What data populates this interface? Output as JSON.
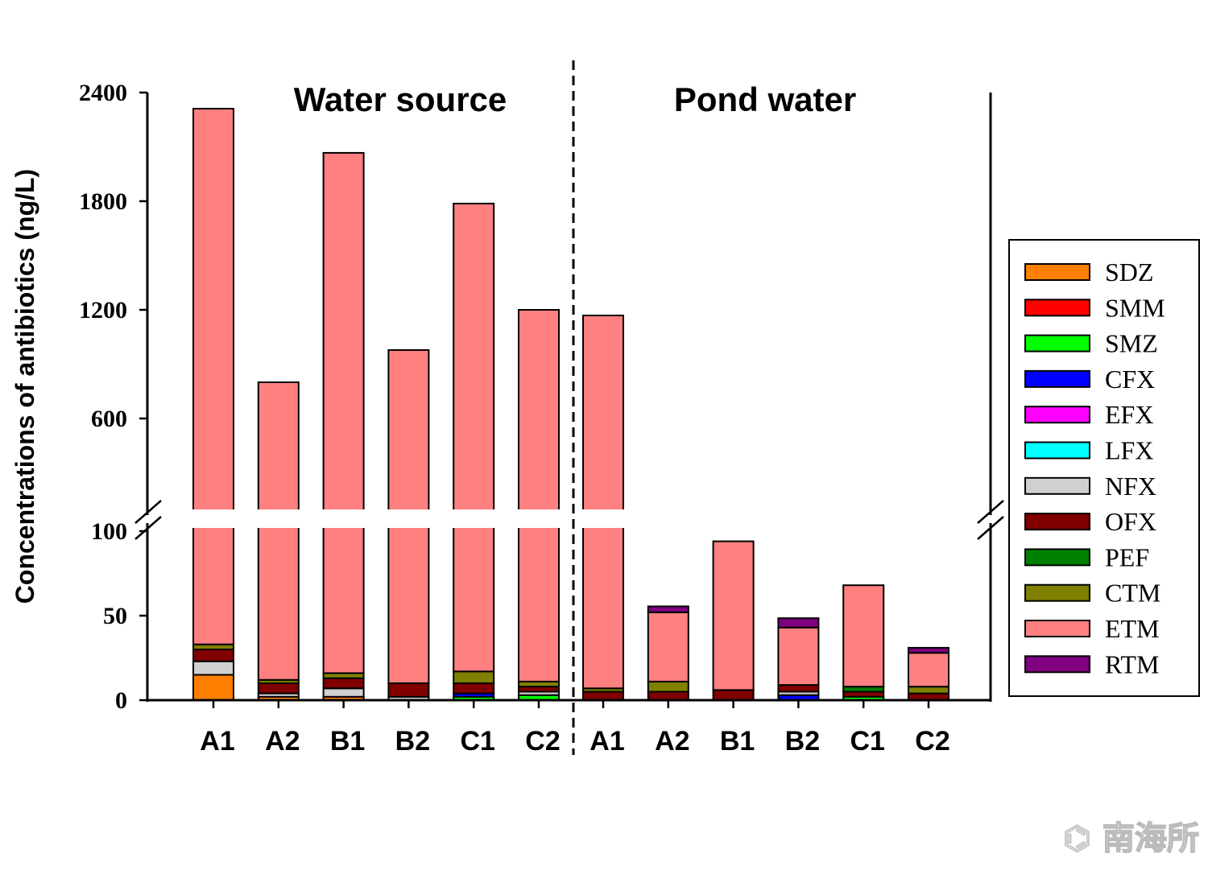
{
  "chart_data": {
    "type": "bar",
    "stacked": true,
    "ylabel": "Concentrations of antibiotics (ng/L)",
    "y_axis_break": true,
    "ylim_lower": [
      0,
      100
    ],
    "ylim_upper": [
      100,
      2400
    ],
    "yticks_lower": [
      0,
      50,
      100
    ],
    "yticks_upper": [
      600,
      1200,
      1800,
      2400
    ],
    "groups": [
      {
        "title": "Water source",
        "categories": [
          "A1",
          "A2",
          "B1",
          "B2",
          "C1",
          "C2"
        ]
      },
      {
        "title": "Pond water",
        "categories": [
          "A1",
          "A2",
          "B1",
          "B2",
          "C1",
          "C2"
        ]
      }
    ],
    "legend_position": "right",
    "series": [
      {
        "name": "SDZ",
        "color": "#ff8000",
        "values": [
          15,
          2,
          2,
          0,
          0,
          0,
          0,
          0,
          0,
          0,
          0,
          0
        ]
      },
      {
        "name": "SMM",
        "color": "#ff0000",
        "values": [
          0,
          0,
          0,
          0,
          0,
          0,
          0,
          0,
          0,
          0,
          0,
          0
        ]
      },
      {
        "name": "SMZ",
        "color": "#00ff00",
        "values": [
          0,
          0,
          0,
          0,
          2,
          3,
          0,
          0,
          0,
          0,
          2,
          0
        ]
      },
      {
        "name": "CFX",
        "color": "#0000ff",
        "values": [
          0,
          0,
          0,
          0,
          2,
          0,
          0,
          0,
          0,
          3,
          0,
          0
        ]
      },
      {
        "name": "EFX",
        "color": "#ff00ff",
        "values": [
          0,
          0,
          0,
          0,
          0,
          0,
          0,
          0,
          0,
          0,
          0,
          0
        ]
      },
      {
        "name": "LFX",
        "color": "#00ffff",
        "values": [
          0,
          0,
          0,
          0,
          0,
          0,
          0,
          0,
          0,
          0,
          0,
          0
        ]
      },
      {
        "name": "NFX",
        "color": "#d0d0d0",
        "values": [
          8,
          2,
          5,
          2,
          0,
          2,
          0,
          0,
          0,
          2,
          0,
          0
        ]
      },
      {
        "name": "OFX",
        "color": "#800000",
        "values": [
          7,
          6,
          6,
          8,
          6,
          3,
          5,
          5,
          6,
          4,
          3,
          4
        ]
      },
      {
        "name": "PEF",
        "color": "#008000",
        "values": [
          0,
          0,
          0,
          0,
          0,
          0,
          0,
          0,
          0,
          0,
          3,
          0
        ]
      },
      {
        "name": "CTM",
        "color": "#808000",
        "values": [
          3,
          2,
          3,
          0,
          7,
          3,
          2,
          6,
          0,
          0,
          0,
          4
        ]
      },
      {
        "name": "ETM",
        "color": "#ff8080",
        "values": [
          2278,
          788,
          2051,
          968,
          1770,
          1189,
          1162,
          41,
          88,
          34,
          60,
          20
        ]
      },
      {
        "name": "RTM",
        "color": "#800080",
        "values": [
          0,
          0,
          0,
          0,
          0,
          0,
          0,
          3.5,
          0,
          5.5,
          0,
          3
        ]
      }
    ]
  },
  "watermark": "南海所"
}
